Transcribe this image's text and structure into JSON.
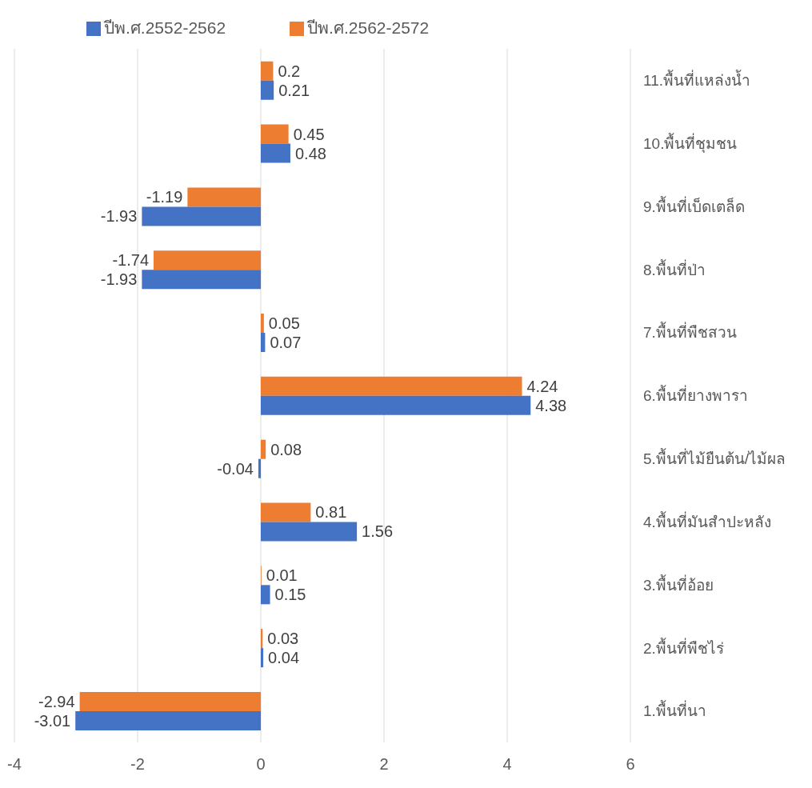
{
  "chart_data": {
    "type": "bar",
    "orientation": "horizontal",
    "categories": [
      "11.พื้นที่แหล่งน้ำ",
      "10.พื้นที่ชุมชน",
      "9.พื้นที่เบ็ดเตล็ด",
      "8.พื้นที่ป่า",
      "7.พื้นที่พืชสวน",
      "6.พื้นที่ยางพารา",
      "5.พื้นที่ไม้ยืนต้น/ไม้ผล",
      "4.พื้นที่มันสำปะหลัง",
      "3.พื้นที่อ้อย",
      "2.พื้นที่พืชไร่",
      "1.พื้นที่นา"
    ],
    "series": [
      {
        "name": "ปีพ.ศ.2562-2572",
        "color": "#ed7d31",
        "values": [
          0.2,
          0.45,
          -1.19,
          -1.74,
          0.05,
          4.24,
          0.08,
          0.81,
          0.01,
          0.03,
          -2.94
        ]
      },
      {
        "name": "ปีพ.ศ.2552-2562",
        "color": "#4472c4",
        "values": [
          0.21,
          0.48,
          -1.93,
          -1.93,
          0.07,
          4.38,
          -0.04,
          1.56,
          0.15,
          0.04,
          -3.01
        ]
      }
    ],
    "xlim": [
      -4,
      6
    ],
    "xticks": [
      -4,
      -2,
      0,
      2,
      4,
      6
    ],
    "grid": "x",
    "legend": "top",
    "data_labels": true
  }
}
